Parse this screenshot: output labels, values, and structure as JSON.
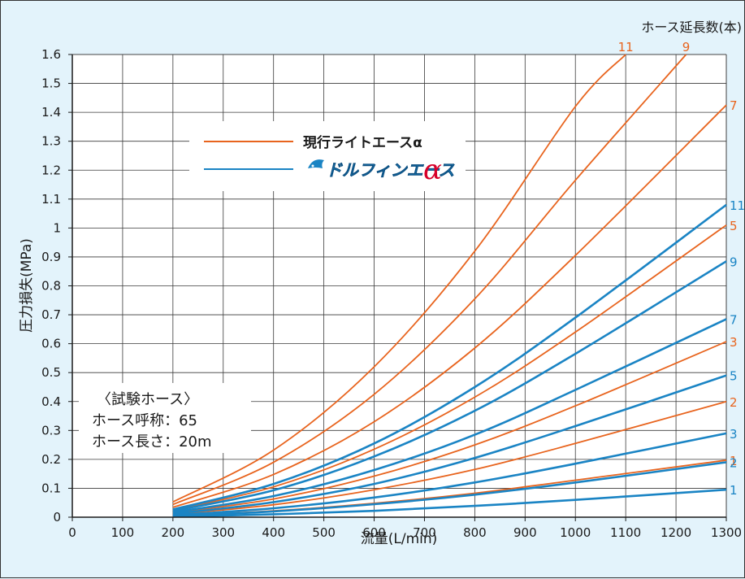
{
  "chart_data": {
    "type": "line",
    "title": "",
    "xlabel": "流量(L/min)",
    "ylabel": "圧力損失(MPa)",
    "xlim": [
      0,
      1300
    ],
    "ylim": [
      0,
      1.6
    ],
    "x_ticks": [
      "0",
      "100",
      "200",
      "300",
      "400",
      "500",
      "600",
      "700",
      "800",
      "900",
      "1000",
      "1100",
      "1200",
      "1300"
    ],
    "y_ticks": [
      "0",
      "0.1",
      "0.2",
      "0.3",
      "0.4",
      "0.5",
      "0.6",
      "0.7",
      "0.8",
      "0.9",
      "1",
      "1.1",
      "1.2",
      "1.3",
      "1.4",
      "1.5",
      "1.6"
    ],
    "grid": true,
    "end_label_header": "ホース延長数(本)",
    "legend": {
      "placement": "upper-left",
      "entries": [
        {
          "name": "現行ライトエースα",
          "color": "#e8641e"
        },
        {
          "name": "ドルフィンエース",
          "suffix": "α",
          "color": "#1a84c4"
        }
      ]
    },
    "note": {
      "lines": [
        "〈試験ホース〉",
        "ホース呼称：65",
        "ホース長さ：20m"
      ]
    },
    "series": [
      {
        "group": "現行ライトエースα",
        "label": "1",
        "color": "#e8641e",
        "points": [
          [
            200,
            0.005
          ],
          [
            400,
            0.022
          ],
          [
            600,
            0.048
          ],
          [
            800,
            0.083
          ],
          [
            1000,
            0.128
          ],
          [
            1300,
            0.197
          ]
        ]
      },
      {
        "group": "現行ライトエースα",
        "label": "2",
        "color": "#e8641e",
        "points": [
          [
            200,
            0.01
          ],
          [
            400,
            0.043
          ],
          [
            600,
            0.095
          ],
          [
            800,
            0.165
          ],
          [
            1000,
            0.255
          ],
          [
            1300,
            0.4
          ]
        ]
      },
      {
        "group": "現行ライトエースα",
        "label": "3",
        "color": "#e8641e",
        "points": [
          [
            200,
            0.015
          ],
          [
            400,
            0.063
          ],
          [
            600,
            0.142
          ],
          [
            800,
            0.25
          ],
          [
            1000,
            0.385
          ],
          [
            1300,
            0.607
          ]
        ]
      },
      {
        "group": "現行ライトエースα",
        "label": "5",
        "color": "#e8641e",
        "points": [
          [
            200,
            0.024
          ],
          [
            400,
            0.105
          ],
          [
            600,
            0.235
          ],
          [
            800,
            0.415
          ],
          [
            1000,
            0.64
          ],
          [
            1300,
            1.01
          ]
        ]
      },
      {
        "group": "現行ライトエースα",
        "label": "7",
        "color": "#e8641e",
        "points": [
          [
            200,
            0.034
          ],
          [
            400,
            0.148
          ],
          [
            600,
            0.33
          ],
          [
            800,
            0.585
          ],
          [
            1000,
            0.905
          ],
          [
            1300,
            1.425
          ]
        ]
      },
      {
        "group": "現行ライトエースα",
        "label": "9",
        "color": "#e8641e",
        "points": [
          [
            200,
            0.044
          ],
          [
            400,
            0.19
          ],
          [
            600,
            0.425
          ],
          [
            800,
            0.755
          ],
          [
            1000,
            1.165
          ],
          [
            1220,
            1.6
          ]
        ]
      },
      {
        "group": "現行ライトエースα",
        "label": "11",
        "color": "#e8641e",
        "points": [
          [
            200,
            0.053
          ],
          [
            400,
            0.232
          ],
          [
            600,
            0.52
          ],
          [
            800,
            0.92
          ],
          [
            1000,
            1.42
          ],
          [
            1100,
            1.6
          ]
        ]
      },
      {
        "group": "ドルフィンエースα",
        "label": "1",
        "color": "#1a84c4",
        "points": [
          [
            200,
            0.002
          ],
          [
            400,
            0.01
          ],
          [
            600,
            0.022
          ],
          [
            800,
            0.039
          ],
          [
            1000,
            0.06
          ],
          [
            1300,
            0.095
          ]
        ]
      },
      {
        "group": "ドルフィンエースα",
        "label": "2",
        "color": "#1a84c4",
        "points": [
          [
            200,
            0.005
          ],
          [
            400,
            0.02
          ],
          [
            600,
            0.045
          ],
          [
            800,
            0.078
          ],
          [
            1000,
            0.12
          ],
          [
            1300,
            0.19
          ]
        ]
      },
      {
        "group": "ドルフィンエースα",
        "label": "3",
        "color": "#1a84c4",
        "points": [
          [
            200,
            0.007
          ],
          [
            400,
            0.031
          ],
          [
            600,
            0.068
          ],
          [
            800,
            0.12
          ],
          [
            1000,
            0.185
          ],
          [
            1300,
            0.29
          ]
        ]
      },
      {
        "group": "ドルフィンエースα",
        "label": "5",
        "color": "#1a84c4",
        "points": [
          [
            200,
            0.012
          ],
          [
            400,
            0.052
          ],
          [
            600,
            0.115
          ],
          [
            800,
            0.205
          ],
          [
            1000,
            0.315
          ],
          [
            1300,
            0.49
          ]
        ]
      },
      {
        "group": "ドルフィンエースα",
        "label": "7",
        "color": "#1a84c4",
        "points": [
          [
            200,
            0.017
          ],
          [
            400,
            0.073
          ],
          [
            600,
            0.163
          ],
          [
            800,
            0.285
          ],
          [
            1000,
            0.44
          ],
          [
            1300,
            0.685
          ]
        ]
      },
      {
        "group": "ドルフィンエースα",
        "label": "9",
        "color": "#1a84c4",
        "points": [
          [
            200,
            0.022
          ],
          [
            400,
            0.093
          ],
          [
            600,
            0.21
          ],
          [
            800,
            0.368
          ],
          [
            1000,
            0.565
          ],
          [
            1300,
            0.885
          ]
        ]
      },
      {
        "group": "ドルフィンエースα",
        "label": "11",
        "color": "#1a84c4",
        "points": [
          [
            200,
            0.027
          ],
          [
            400,
            0.115
          ],
          [
            600,
            0.255
          ],
          [
            800,
            0.45
          ],
          [
            1000,
            0.69
          ],
          [
            1300,
            1.08
          ]
        ]
      }
    ]
  }
}
